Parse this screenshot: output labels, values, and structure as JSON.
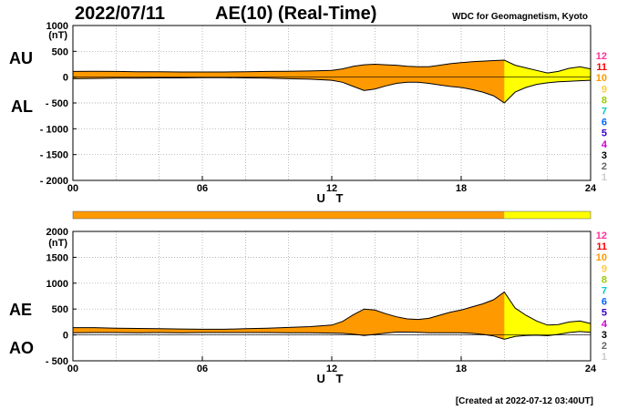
{
  "chart_data": [
    {
      "type": "area",
      "title_date": "2022/07/11",
      "title": "AE(10) (Real-Time)",
      "source": "WDC for Geomagnetism, Kyoto",
      "ylabel_unit": "(nT)",
      "upper_label": "AU",
      "lower_label": "AL",
      "xlabel": "U T",
      "xlim": [
        0,
        24
      ],
      "ylim": [
        -2000,
        1000
      ],
      "xticks": [
        "00",
        "06",
        "12",
        "18",
        "24"
      ],
      "yticks": [
        1000,
        500,
        0,
        -500,
        -1000,
        -1500,
        -2000
      ],
      "ytick_labels": [
        "1000",
        "500",
        "0",
        "- 500",
        "- 1000",
        "- 1500",
        "- 2000"
      ],
      "fill_color": "#ff9900",
      "series": [
        {
          "name": "AU",
          "x": [
            0,
            1,
            2,
            3,
            4,
            5,
            6,
            7,
            8,
            9,
            10,
            11,
            12,
            12.5,
            13,
            13.5,
            14,
            14.5,
            15,
            15.5,
            16,
            16.5,
            17,
            17.5,
            18,
            18.5,
            19,
            19.5,
            20,
            20.5,
            21,
            21.5,
            22,
            22.5,
            23,
            23.5,
            24
          ],
          "values": [
            110,
            115,
            110,
            105,
            105,
            100,
            100,
            100,
            105,
            110,
            115,
            120,
            130,
            160,
            210,
            240,
            250,
            240,
            230,
            210,
            200,
            200,
            230,
            260,
            280,
            300,
            310,
            320,
            330,
            230,
            180,
            130,
            80,
            110,
            170,
            200,
            160
          ]
        },
        {
          "name": "AL",
          "x": [
            0,
            1,
            2,
            3,
            4,
            5,
            6,
            7,
            8,
            9,
            10,
            11,
            12,
            12.5,
            13,
            13.5,
            14,
            14.5,
            15,
            15.5,
            16,
            16.5,
            17,
            17.5,
            18,
            18.5,
            19,
            19.5,
            20,
            20.5,
            21,
            21.5,
            22,
            22.5,
            23,
            23.5,
            24
          ],
          "values": [
            -30,
            -25,
            -20,
            -20,
            -15,
            -15,
            -10,
            -10,
            -15,
            -20,
            -30,
            -40,
            -60,
            -100,
            -180,
            -260,
            -230,
            -170,
            -120,
            -100,
            -100,
            -120,
            -150,
            -180,
            -200,
            -240,
            -290,
            -360,
            -500,
            -290,
            -200,
            -140,
            -110,
            -90,
            -80,
            -70,
            -60
          ]
        }
      ]
    },
    {
      "type": "area",
      "ylabel_unit": "(nT)",
      "upper_label": "AE",
      "lower_label": "AO",
      "xlabel": "U T",
      "xlim": [
        0,
        24
      ],
      "ylim": [
        -500,
        2000
      ],
      "xticks": [
        "00",
        "06",
        "12",
        "18",
        "24"
      ],
      "yticks": [
        2000,
        1500,
        1000,
        500,
        0,
        -500
      ],
      "ytick_labels": [
        "2000",
        "1500",
        "1000",
        "500",
        "0",
        "- 500"
      ],
      "fill_color": "#ff9900",
      "series": [
        {
          "name": "AE",
          "x": [
            0,
            1,
            2,
            3,
            4,
            5,
            6,
            7,
            8,
            9,
            10,
            11,
            12,
            12.5,
            13,
            13.5,
            14,
            14.5,
            15,
            15.5,
            16,
            16.5,
            17,
            17.5,
            18,
            18.5,
            19,
            19.5,
            20,
            20.5,
            21,
            21.5,
            22,
            22.5,
            23,
            23.5,
            24
          ],
          "values": [
            140,
            140,
            130,
            125,
            120,
            115,
            110,
            110,
            120,
            130,
            145,
            160,
            190,
            260,
            390,
            500,
            480,
            410,
            350,
            310,
            300,
            320,
            380,
            440,
            480,
            540,
            600,
            680,
            830,
            520,
            380,
            270,
            190,
            200,
            250,
            270,
            220
          ]
        },
        {
          "name": "AO",
          "x": [
            0,
            1,
            2,
            3,
            4,
            5,
            6,
            7,
            8,
            9,
            10,
            11,
            12,
            12.5,
            13,
            13.5,
            14,
            14.5,
            15,
            15.5,
            16,
            16.5,
            17,
            17.5,
            18,
            18.5,
            19,
            19.5,
            20,
            20.5,
            21,
            21.5,
            22,
            22.5,
            23,
            23.5,
            24
          ],
          "values": [
            40,
            45,
            45,
            42,
            45,
            42,
            45,
            45,
            45,
            45,
            42,
            40,
            35,
            30,
            15,
            -10,
            10,
            35,
            55,
            55,
            50,
            40,
            40,
            40,
            40,
            30,
            10,
            -20,
            -85,
            -30,
            -10,
            -5,
            -15,
            10,
            45,
            65,
            50
          ]
        }
      ]
    }
  ],
  "activity_bar": {
    "segments": [
      {
        "start": 0,
        "end": 20,
        "color": "#ff9900"
      },
      {
        "start": 20,
        "end": 24,
        "color": "#ffff00"
      }
    ]
  },
  "legend_numbers": [
    {
      "label": "12",
      "color": "#ff3399"
    },
    {
      "label": "11",
      "color": "#ff0000"
    },
    {
      "label": "10",
      "color": "#ff9900"
    },
    {
      "label": "9",
      "color": "#ffcc33"
    },
    {
      "label": "8",
      "color": "#99cc00"
    },
    {
      "label": "7",
      "color": "#00cccc"
    },
    {
      "label": "6",
      "color": "#0066ff"
    },
    {
      "label": "5",
      "color": "#3300cc"
    },
    {
      "label": "4",
      "color": "#cc00cc"
    },
    {
      "label": "3",
      "color": "#000000"
    },
    {
      "label": "2",
      "color": "#666666"
    },
    {
      "label": "1",
      "color": "#cccccc"
    }
  ],
  "footer": "[Created at 2022-07-12 03:40UT]"
}
